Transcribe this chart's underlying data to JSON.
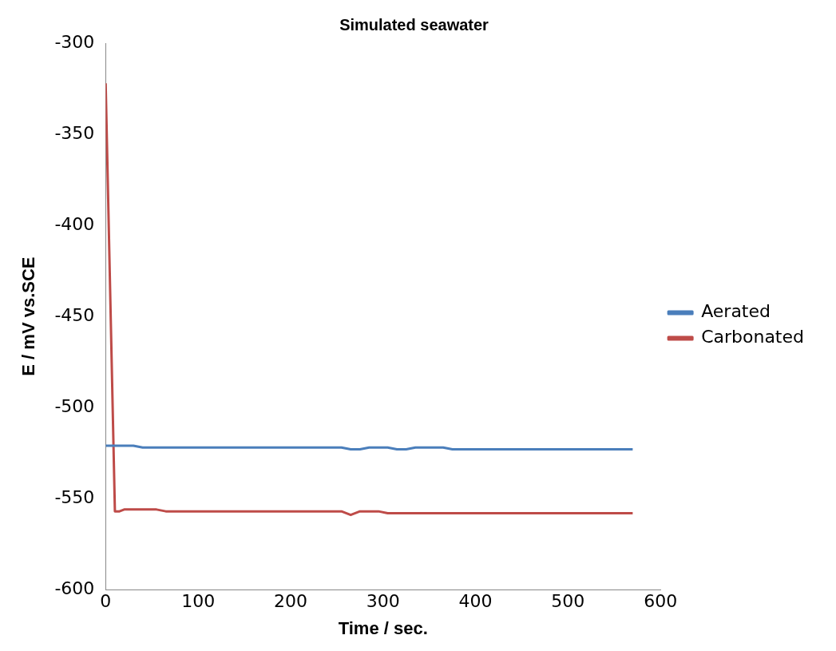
{
  "chart_data": {
    "type": "line",
    "title": "Simulated seawater",
    "xlabel": "Time / sec.",
    "ylabel": "E / mV vs.SCE",
    "xlim": [
      0,
      600
    ],
    "xticks": [
      0,
      100,
      200,
      300,
      400,
      500,
      600
    ],
    "ylim": [
      -600,
      -300
    ],
    "yticks": [
      -600,
      -550,
      -500,
      -450,
      -400,
      -350,
      -300
    ],
    "grid": false,
    "legend": "right",
    "marker": "none",
    "line_style": "solid",
    "series": [
      {
        "name": "Aerated",
        "color": "#4a7ebb",
        "x": [
          0,
          30,
          40,
          255,
          265,
          275,
          285,
          295,
          305,
          315,
          325,
          335,
          365,
          375,
          570
        ],
        "values": [
          -521,
          -521,
          -522,
          -522,
          -523,
          -523,
          -522,
          -522,
          -522,
          -523,
          -523,
          -522,
          -522,
          -523,
          -523
        ]
      },
      {
        "name": "Carbonated",
        "color": "#be4b48",
        "x": [
          0,
          10,
          15,
          20,
          55,
          65,
          75,
          85,
          255,
          265,
          275,
          295,
          305,
          570
        ],
        "values": [
          -322,
          -557,
          -557,
          -556,
          -556,
          -557,
          -557,
          -557,
          -557,
          -559,
          -557,
          -557,
          -558,
          -558
        ]
      }
    ]
  }
}
